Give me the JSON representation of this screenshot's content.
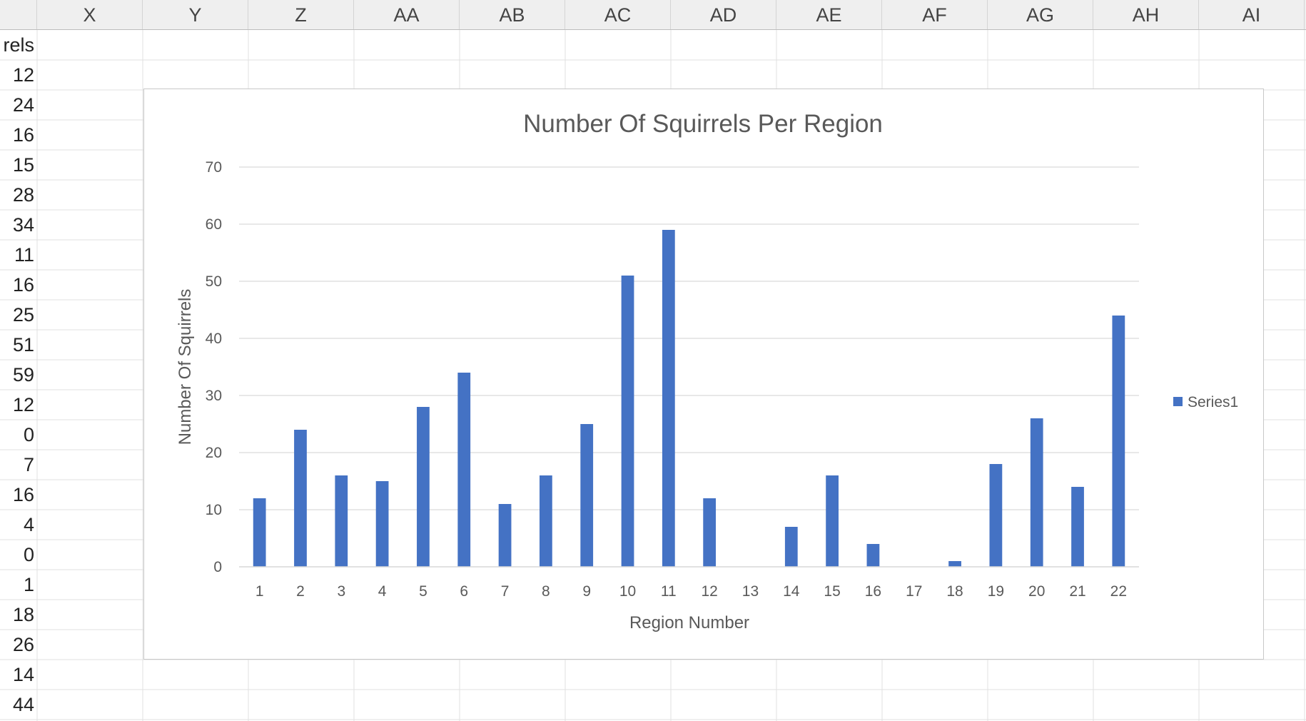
{
  "spreadsheet": {
    "columns": [
      "X",
      "Y",
      "Z",
      "AA",
      "AB",
      "AC",
      "AD",
      "AE",
      "AF",
      "AG",
      "AH",
      "AI"
    ],
    "left_column_cells": [
      "rels",
      "12",
      "24",
      "16",
      "15",
      "28",
      "34",
      "11",
      "16",
      "25",
      "51",
      "59",
      "12",
      "0",
      "7",
      "16",
      "4",
      "0",
      "1",
      "18",
      "26",
      "14",
      "44"
    ]
  },
  "chart_data": {
    "type": "bar",
    "title": "Number Of Squirrels Per Region",
    "xlabel": "Region Number",
    "ylabel": "Number Of Squirrels",
    "categories": [
      "1",
      "2",
      "3",
      "4",
      "5",
      "6",
      "7",
      "8",
      "9",
      "10",
      "11",
      "12",
      "13",
      "14",
      "15",
      "16",
      "17",
      "18",
      "19",
      "20",
      "21",
      "22"
    ],
    "series": [
      {
        "name": "Series1",
        "values": [
          12,
          24,
          16,
          15,
          28,
          34,
          11,
          16,
          25,
          51,
          59,
          12,
          0,
          7,
          16,
          4,
          0,
          1,
          18,
          26,
          14,
          44
        ],
        "color": "#4472c4"
      }
    ],
    "ylim": [
      0,
      70
    ],
    "yticks": [
      "0",
      "10",
      "20",
      "30",
      "40",
      "50",
      "60",
      "70"
    ],
    "grid": true,
    "legend_position": "right"
  }
}
